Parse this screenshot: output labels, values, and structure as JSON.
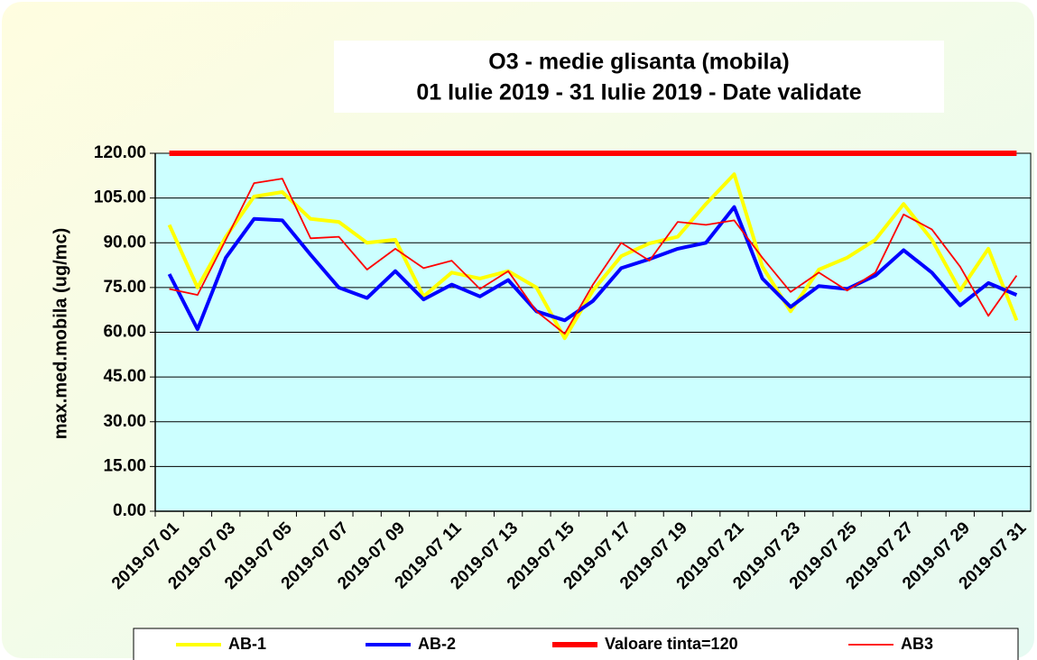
{
  "chart_data": {
    "type": "line",
    "title": "O3 - medie glisanta (mobila)",
    "subtitle": "01 Iulie 2019 - 31 Iulie  2019 -  Date validate",
    "y_label": "max.med.mobila (ug/mc)",
    "categories": [
      "2019-07 01",
      null,
      "2019-07 03",
      null,
      "2019-07 05",
      null,
      "2019-07 07",
      null,
      "2019-07 09",
      null,
      "2019-07 11",
      null,
      "2019-07 13",
      null,
      "2019-07 15",
      null,
      "2019-07 17",
      null,
      "2019-07 19",
      null,
      "2019-07 21",
      null,
      "2019-07 23",
      null,
      "2019-07 25",
      null,
      "2019-07 27",
      null,
      "2019-07 29",
      null,
      "2019-07 31"
    ],
    "series": [
      {
        "name": "AB-1",
        "color": "#ffff00",
        "line_width": 4,
        "values": [
          96,
          75,
          92,
          105.5,
          107,
          98,
          97,
          90,
          91,
          72,
          80,
          78,
          80.5,
          75,
          58,
          74,
          85.5,
          89.8,
          92,
          103,
          113,
          82,
          67,
          81,
          85,
          91,
          103,
          91,
          74,
          88,
          64
        ]
      },
      {
        "name": "AB-2",
        "color": "#0000ff",
        "line_width": 4,
        "values": [
          79.5,
          61,
          85,
          98,
          97.5,
          86,
          75,
          71.5,
          80.5,
          71,
          76,
          72,
          77.5,
          67,
          64,
          70.5,
          81.5,
          84.5,
          88,
          90,
          102,
          78,
          68.5,
          75.5,
          74.5,
          79,
          87.5,
          80,
          69,
          76.5,
          72.5
        ]
      },
      {
        "name": "Valoare tinta=120",
        "color": "#ff0000",
        "line_width": 6,
        "values": [
          120,
          120,
          120,
          120,
          120,
          120,
          120,
          120,
          120,
          120,
          120,
          120,
          120,
          120,
          120,
          120,
          120,
          120,
          120,
          120,
          120,
          120,
          120,
          120,
          120,
          120,
          120,
          120,
          120,
          120,
          120
        ]
      },
      {
        "name": "AB3",
        "color": "#ff0000",
        "line_width": 1.8,
        "values": [
          74.5,
          72.5,
          91,
          110,
          111.5,
          91.5,
          92,
          81,
          88,
          81.5,
          84,
          74.5,
          80.5,
          67,
          59.5,
          76,
          90,
          84,
          97,
          96,
          97.5,
          85,
          73.5,
          80,
          74,
          80,
          99.5,
          94.5,
          82,
          65.5,
          79
        ]
      }
    ],
    "ylim": [
      0,
      120
    ],
    "yticks": [
      {
        "value": 0,
        "label": "0.00"
      },
      {
        "value": 15,
        "label": "15.00"
      },
      {
        "value": 30,
        "label": "30.00"
      },
      {
        "value": 45,
        "label": "45.00"
      },
      {
        "value": 60,
        "label": "60.00"
      },
      {
        "value": 75,
        "label": "75.00"
      },
      {
        "value": 90,
        "label": "90.00"
      },
      {
        "value": 105,
        "label": "105.00"
      },
      {
        "value": 120,
        "label": "120.00"
      }
    ],
    "grid": true,
    "plot_background": "#ccffff",
    "legend": "bottom"
  }
}
